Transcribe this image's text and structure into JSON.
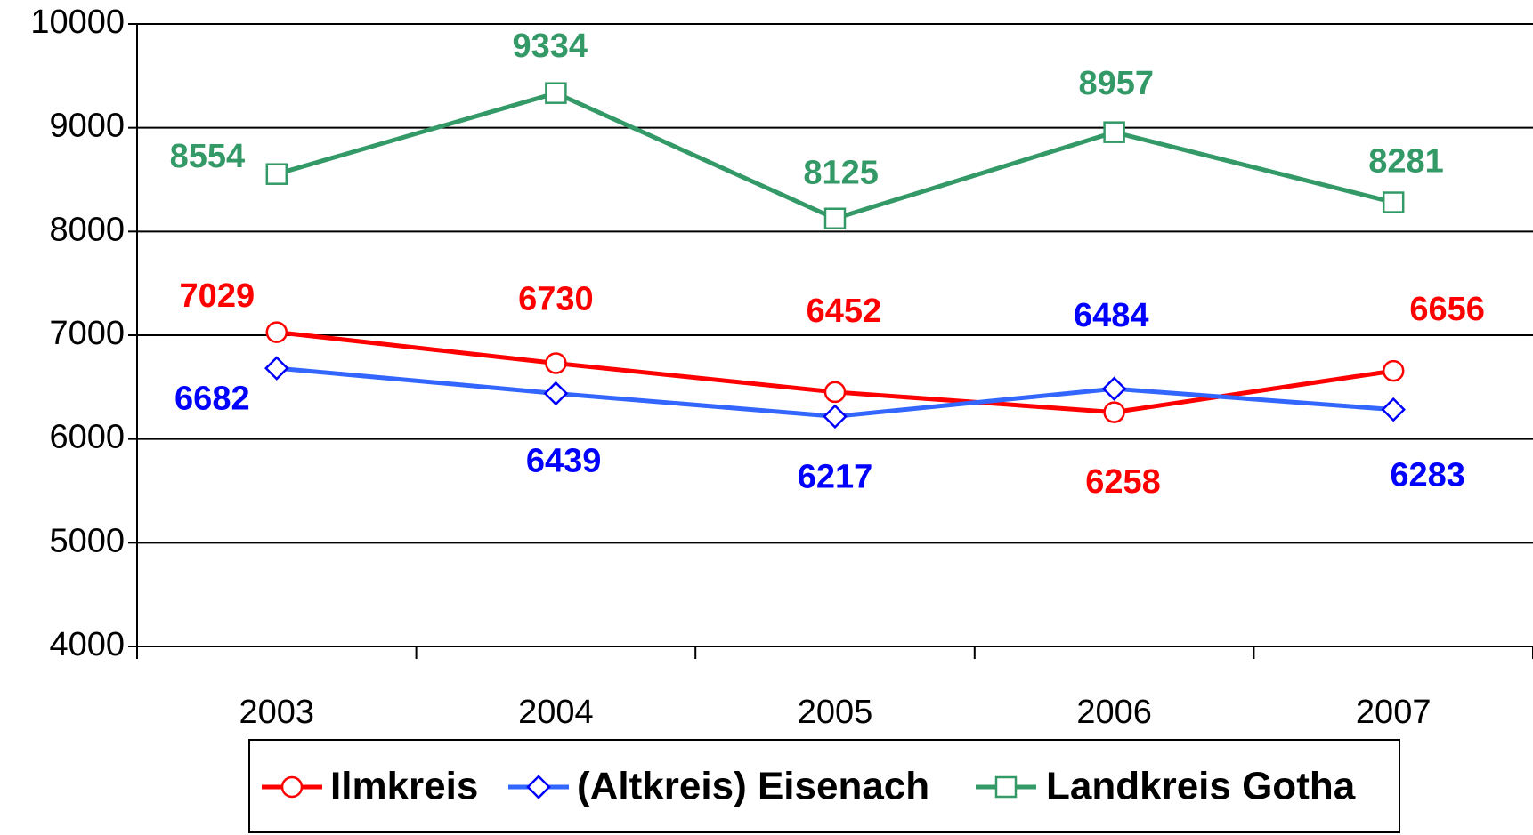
{
  "chart_data": {
    "type": "line",
    "categories": [
      "2003",
      "2004",
      "2005",
      "2006",
      "2007"
    ],
    "series": [
      {
        "name": "Ilmkreis",
        "color": "#ff0000",
        "marker": "circle",
        "values": [
          7029,
          6730,
          6452,
          6258,
          6656
        ]
      },
      {
        "name": "(Altkreis) Eisenach",
        "color": "#0000ff",
        "marker": "diamond",
        "values": [
          6682,
          6439,
          6217,
          6484,
          6283
        ]
      },
      {
        "name": "Landkreis Gotha",
        "color": "#339966",
        "marker": "square",
        "values": [
          8554,
          9334,
          8125,
          8957,
          8281
        ]
      }
    ],
    "ylim": [
      4000,
      10000
    ],
    "yticks": [
      4000,
      5000,
      6000,
      7000,
      8000,
      9000,
      10000
    ],
    "grid": true,
    "legend": "bottom"
  }
}
